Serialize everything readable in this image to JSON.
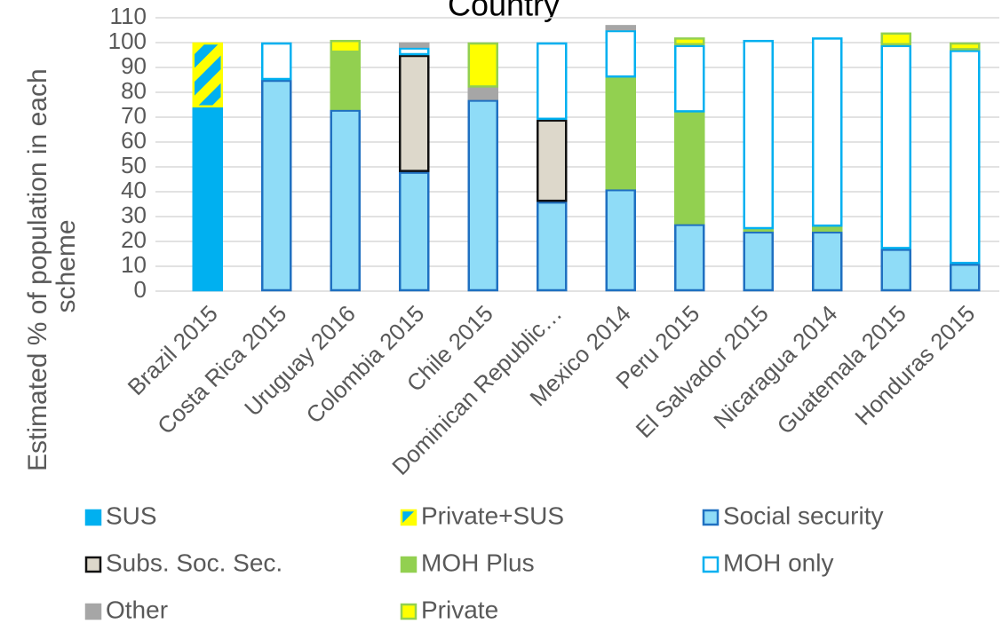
{
  "chart_data": {
    "type": "stacked_bar",
    "title": "Country",
    "ylabel": [
      "Estimated % of population in each",
      "scheme"
    ],
    "categories": [
      "Brazil 2015",
      "Costa Rica 2015",
      "Uruguay 2016",
      "Colombia 2015",
      "Chile 2015",
      "Dominican Republic…",
      "Mexico 2014",
      "Peru 2015",
      "El Salvador 2015",
      "Nicaragua 2014",
      "Guatemala 2015",
      "Honduras 2015"
    ],
    "series": [
      {
        "name": "SUS",
        "color": "#00b0f0",
        "border": "#00b0f0",
        "values": [
          74,
          0,
          0,
          0,
          0,
          0,
          0,
          0,
          0,
          0,
          0,
          0
        ]
      },
      {
        "name": "Private+SUS",
        "color": "#ffff00",
        "hatch": "#00b0f0",
        "border": "#ffff00",
        "values": [
          26,
          0,
          0,
          0,
          0,
          0,
          0,
          0,
          0,
          0,
          0,
          0
        ]
      },
      {
        "name": "Social security",
        "color": "#8fdcf7",
        "border": "#1f70c1",
        "values": [
          0,
          85,
          73,
          48,
          77,
          36,
          41,
          27,
          24,
          24,
          17,
          11
        ]
      },
      {
        "name": "Subs. Soc. Sec.",
        "color": "#ddd8cb",
        "border": "#111111",
        "values": [
          0,
          0,
          0,
          47,
          0,
          33,
          0,
          0,
          0,
          0,
          0,
          0
        ]
      },
      {
        "name": "MOH Plus",
        "color": "#92d050",
        "border": "#92d050",
        "values": [
          0,
          0,
          23,
          0,
          0,
          0,
          45,
          45,
          1,
          2,
          0,
          0
        ]
      },
      {
        "name": "MOH only",
        "color": "#ffffff",
        "border": "#00b0f0",
        "values": [
          0,
          15,
          0,
          3,
          0,
          31,
          19,
          27,
          76,
          76,
          82,
          86
        ]
      },
      {
        "name": "Other",
        "color": "#a6a6a6",
        "border": "#a6a6a6",
        "values": [
          0,
          0,
          0,
          2,
          5,
          0,
          2,
          0,
          0,
          0,
          0,
          0
        ]
      },
      {
        "name": "Private",
        "color": "#ffff00",
        "border": "#92d050",
        "values": [
          0,
          0,
          5,
          0,
          18,
          0,
          0,
          3,
          0,
          0,
          5,
          3
        ]
      }
    ],
    "ylim": [
      0,
      110
    ],
    "yticks": [
      0,
      10,
      20,
      30,
      40,
      50,
      60,
      70,
      80,
      90,
      100,
      110
    ],
    "grid": true,
    "legend": "bottom"
  }
}
